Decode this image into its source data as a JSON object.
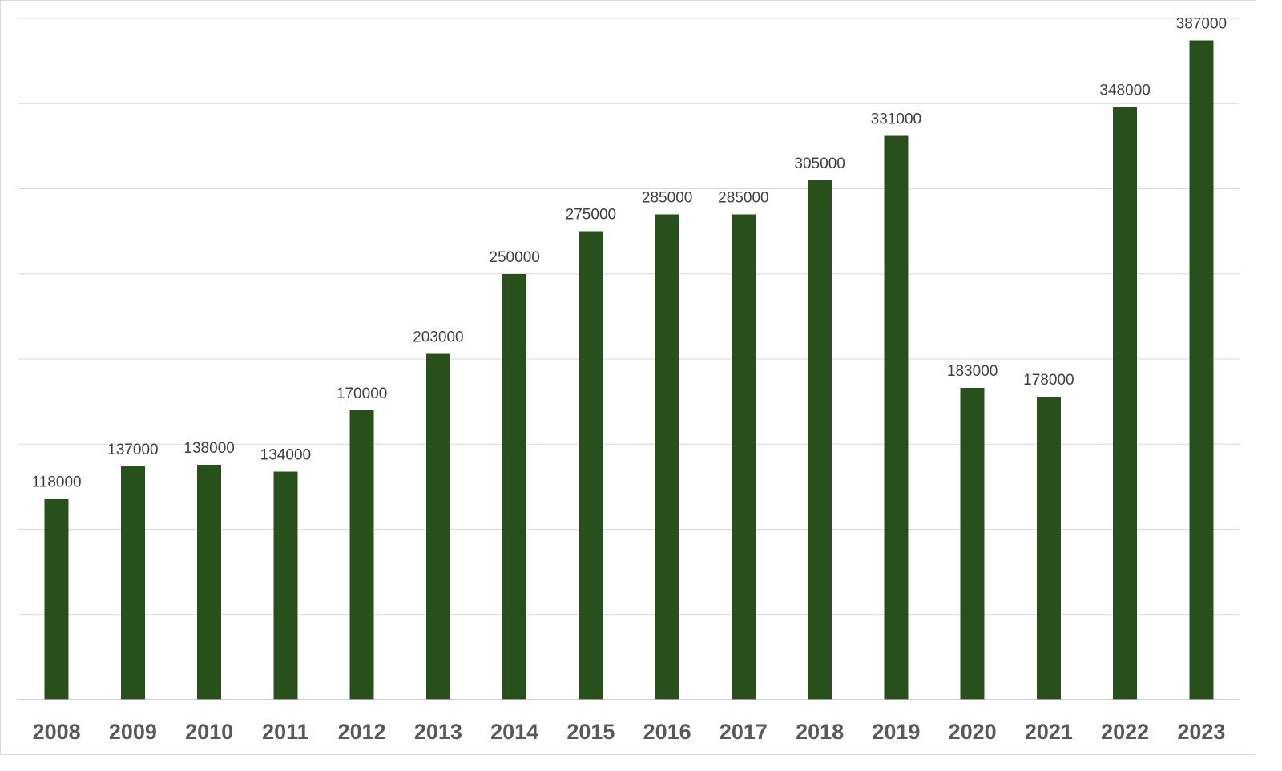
{
  "chart_data": {
    "type": "bar",
    "categories": [
      "2008",
      "2009",
      "2010",
      "2011",
      "2012",
      "2013",
      "2014",
      "2015",
      "2016",
      "2017",
      "2018",
      "2019",
      "2020",
      "2021",
      "2022",
      "2023"
    ],
    "values": [
      118000,
      137000,
      138000,
      134000,
      170000,
      203000,
      250000,
      275000,
      285000,
      285000,
      305000,
      331000,
      183000,
      178000,
      348000,
      387000
    ],
    "title": "",
    "xlabel": "",
    "ylabel": "",
    "ylim": [
      0,
      400000
    ],
    "y_gridline_step": 50000,
    "grid": true,
    "legend": "none",
    "bar_color": "#27501a",
    "data_labels": true
  }
}
